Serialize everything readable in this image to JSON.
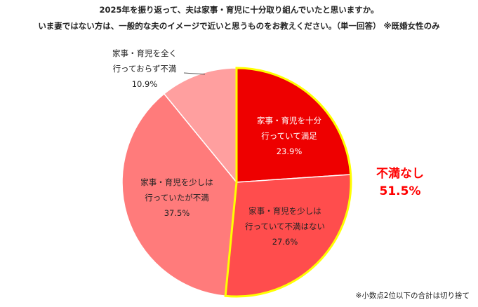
{
  "title": {
    "line1": "2025年を振り返って、夫は家事・育児に十分取り組んでいたと思いますか。",
    "line2": "いま妻ではない方は、一般的な夫のイメージで近いと思うものをお教えください。（単一回答） ※既婚女性のみ"
  },
  "highlight": {
    "label": "不満なし",
    "value": "51.5%"
  },
  "footnote": "※小数点2位以下の合計は切り捨て",
  "chart_data": {
    "type": "pie",
    "start_angle": "12 o'clock",
    "direction": "clockwise",
    "slices": [
      {
        "lines": [
          "家事・育児を十分",
          "行っていて満足"
        ],
        "value": 23.9,
        "value_label": "23.9%",
        "color": "#ee0000",
        "label_color": "#ffffff",
        "highlight_outline": true
      },
      {
        "lines": [
          "家事・育児を少しは",
          "行っていて不満はない"
        ],
        "value": 27.6,
        "value_label": "27.6%",
        "color": "#ff4d4d",
        "label_color": "#222222",
        "highlight_outline": true
      },
      {
        "lines": [
          "家事・育児を少しは",
          "行っていたが不満"
        ],
        "value": 37.5,
        "value_label": "37.5%",
        "color": "#ff7b7b",
        "label_color": "#222222",
        "highlight_outline": false
      },
      {
        "lines": [
          "家事・育児を全く",
          "行っておらず不満"
        ],
        "value": 10.9,
        "value_label": "10.9%",
        "color": "#ff9f9f",
        "label_color": "#222222",
        "highlight_outline": false
      }
    ],
    "outline_color": "#ffff00"
  }
}
